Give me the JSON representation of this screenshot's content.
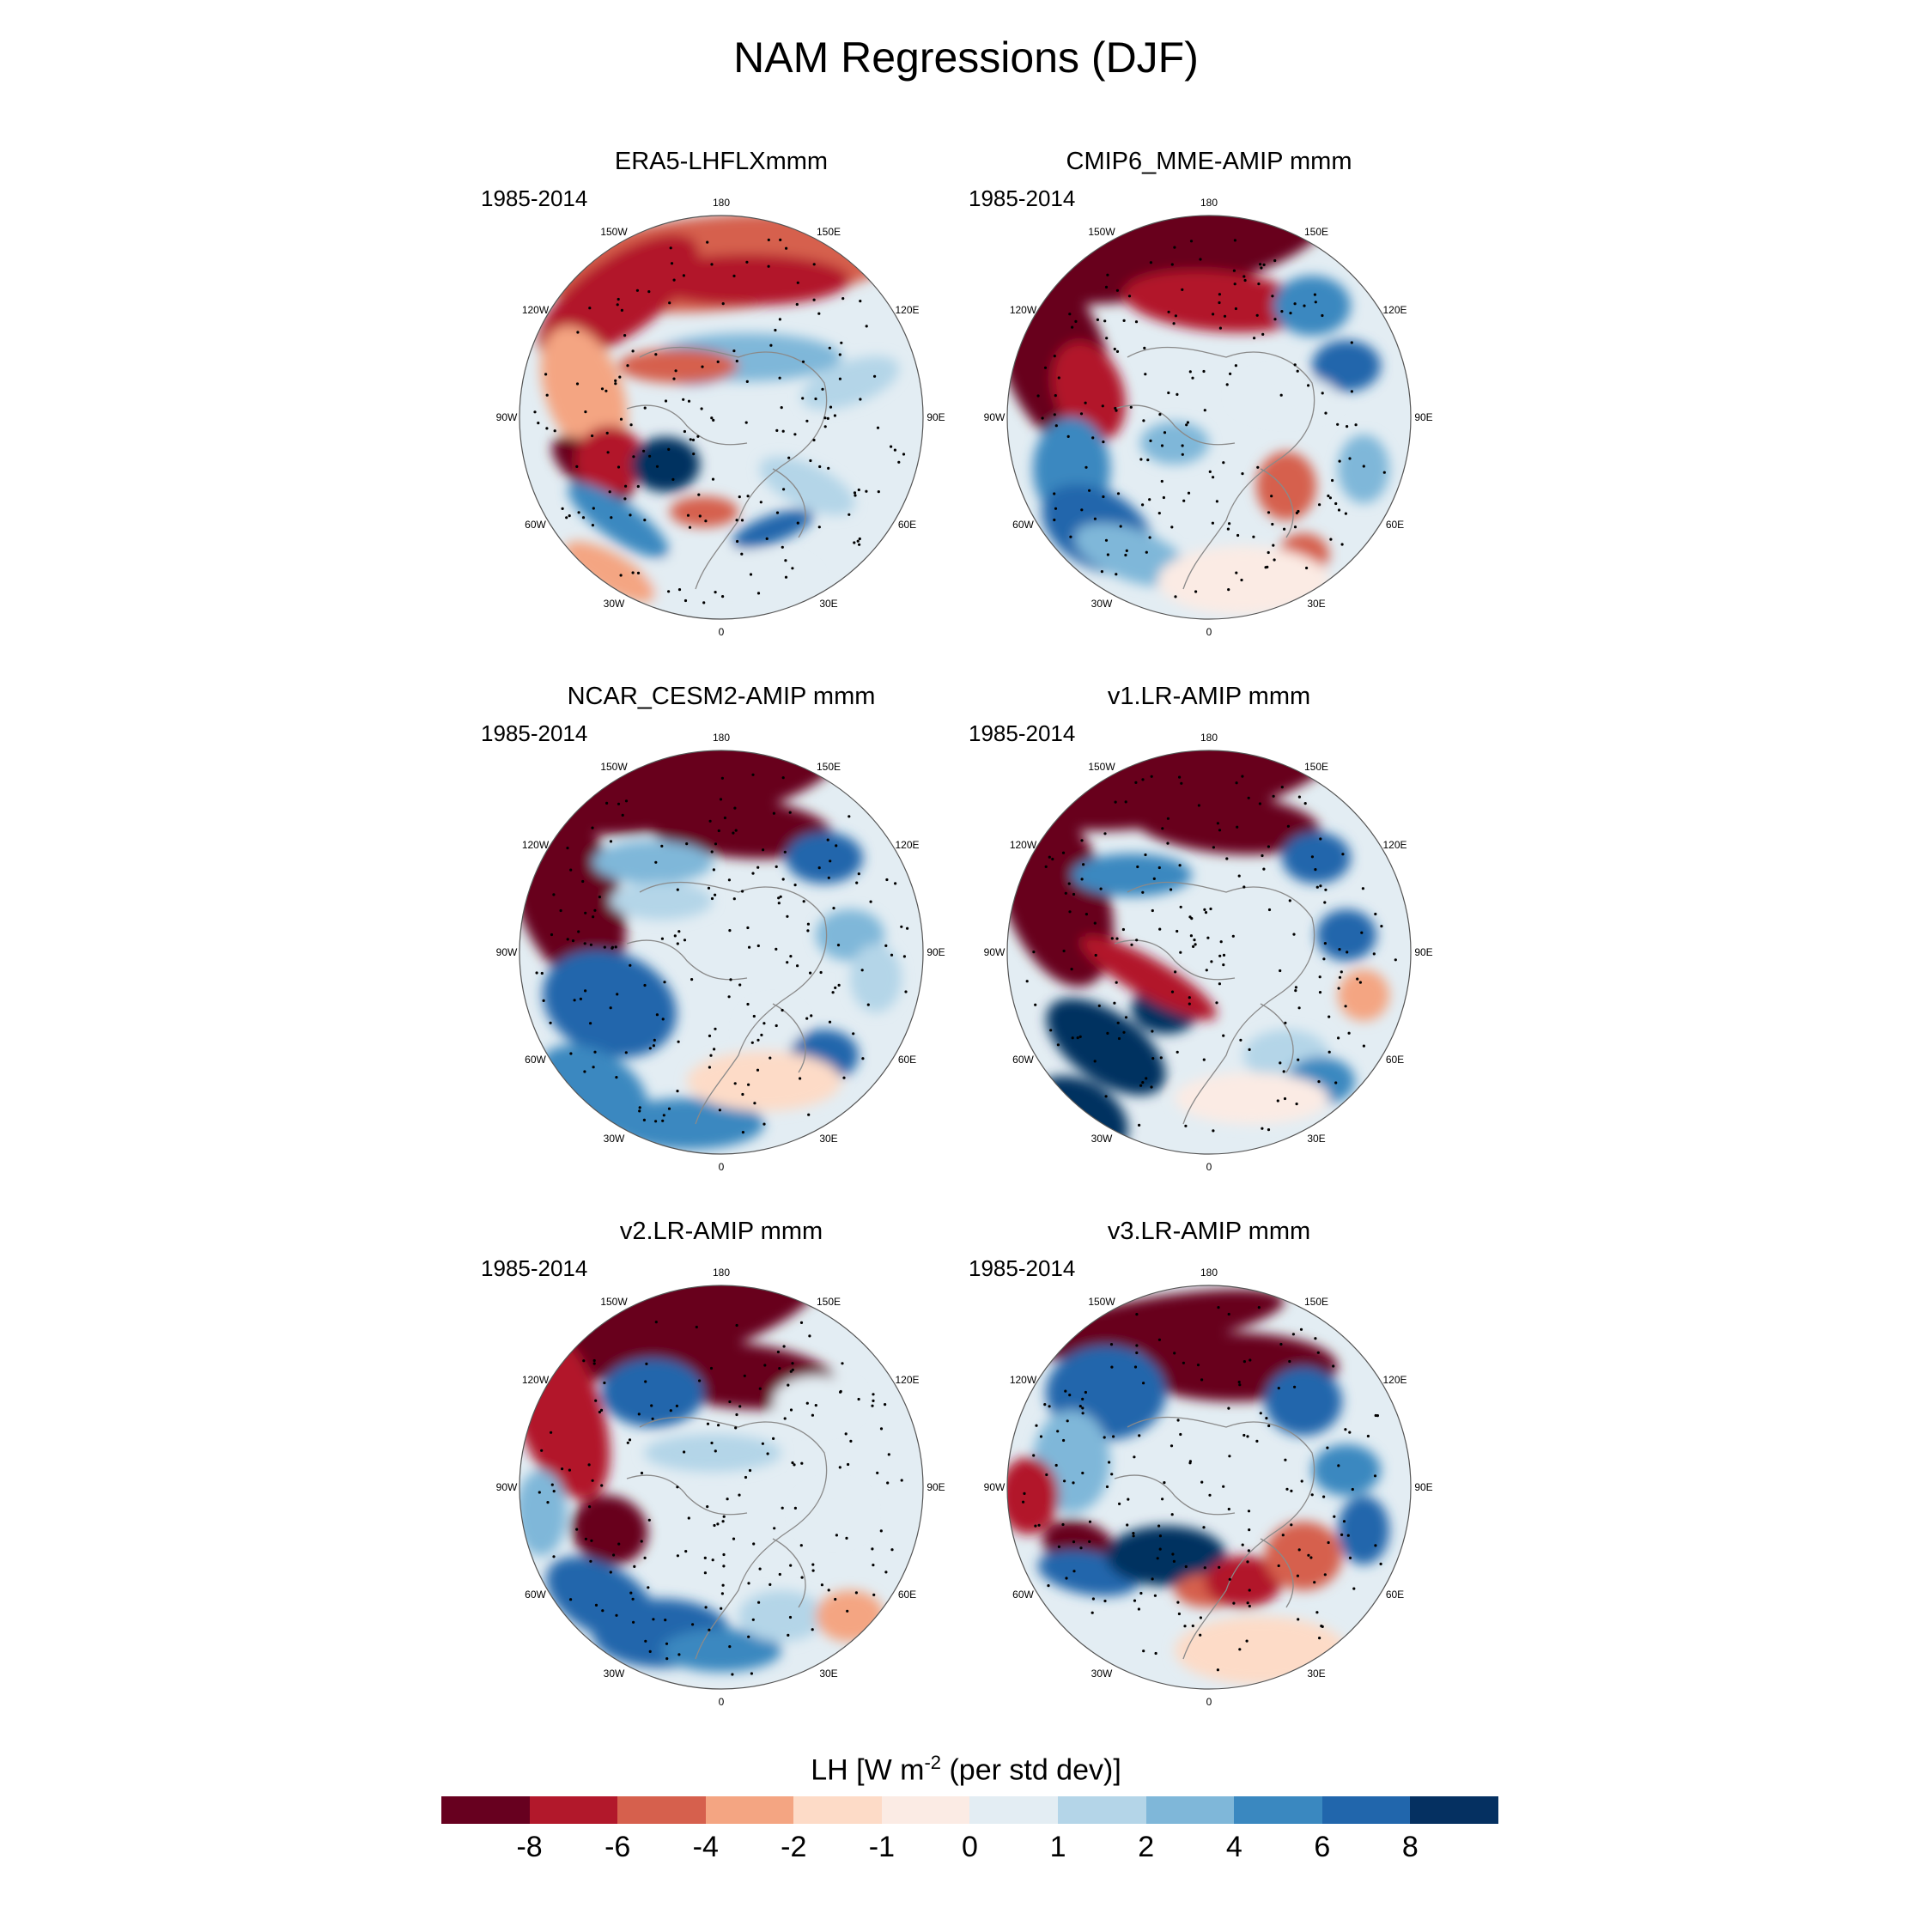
{
  "title": "NAM Regressions (DJF)",
  "panels": [
    {
      "title": "ERA5-LHFLXmmm",
      "period": "1985-2014"
    },
    {
      "title": "CMIP6_MME-AMIP  mmm",
      "period": "1985-2014"
    },
    {
      "title": "NCAR_CESM2-AMIP  mmm",
      "period": "1985-2014"
    },
    {
      "title": "v1.LR-AMIP  mmm",
      "period": "1985-2014"
    },
    {
      "title": "v2.LR-AMIP  mmm",
      "period": "1985-2014"
    },
    {
      "title": "v3.LR-AMIP  mmm",
      "period": "1985-2014"
    }
  ],
  "longitude_labels": [
    "180",
    "150E",
    "120E",
    "90E",
    "60E",
    "30E",
    "0",
    "30W",
    "60W",
    "90W",
    "120W",
    "150W"
  ],
  "colorbar": {
    "title_prefix": "LH [W m",
    "title_exp": "-2",
    "title_suffix": " (per std dev)]",
    "ticks": [
      "-8",
      "-6",
      "-4",
      "-2",
      "-1",
      "0",
      "1",
      "2",
      "4",
      "6",
      "8"
    ],
    "colors": [
      "#67001f",
      "#b2182b",
      "#d6604d",
      "#f4a582",
      "#fddbc7",
      "#fbebe4",
      "#e3edf3",
      "#b4d5e8",
      "#7fb7d9",
      "#3a88c0",
      "#2166ac",
      "#053061"
    ]
  }
}
